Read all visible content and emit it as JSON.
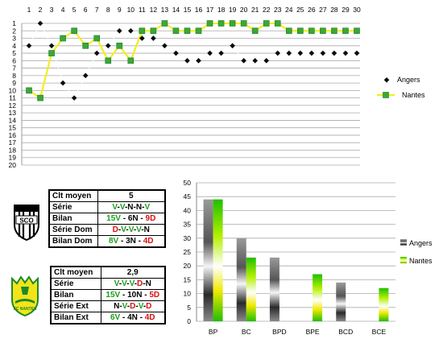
{
  "chart_data": [
    {
      "type": "line",
      "x": [
        1,
        2,
        3,
        4,
        5,
        6,
        7,
        8,
        9,
        10,
        11,
        12,
        13,
        14,
        15,
        16,
        17,
        18,
        19,
        20,
        21,
        22,
        23,
        24,
        25,
        26,
        27,
        28,
        29,
        30
      ],
      "ylim": [
        20,
        1
      ],
      "y_ticks": [
        1,
        2,
        3,
        4,
        5,
        6,
        7,
        8,
        9,
        10,
        11,
        12,
        13,
        14,
        15,
        16,
        17,
        18,
        19,
        20
      ],
      "grid": true,
      "legend_position": "right",
      "series": [
        {
          "name": "Angers",
          "marker": "diamond",
          "color": "#0a0a0a",
          "values": [
            4,
            1,
            4,
            9,
            11,
            8,
            5,
            4,
            2,
            2,
            3,
            3,
            4,
            5,
            6,
            6,
            5,
            5,
            4,
            6,
            6,
            6,
            5,
            5,
            5,
            5,
            5,
            5,
            5,
            5
          ]
        },
        {
          "name": "Nantes",
          "marker": "square",
          "color": "#3aa835",
          "line_color": "#f2ee20",
          "values": [
            10,
            11,
            5,
            3,
            2,
            4,
            3,
            6,
            4,
            6,
            2,
            2,
            1,
            2,
            2,
            2,
            1,
            1,
            1,
            1,
            2,
            1,
            1,
            2,
            2,
            2,
            2,
            2,
            2,
            2
          ]
        }
      ]
    },
    {
      "type": "bar",
      "categories": [
        "BP",
        "BC",
        "BPD",
        "BPE",
        "BCD",
        "BCE"
      ],
      "ylim": [
        0,
        50
      ],
      "y_ticks": [
        0,
        5,
        10,
        15,
        20,
        25,
        30,
        35,
        40,
        45,
        50
      ],
      "grid": true,
      "legend_position": "right",
      "series": [
        {
          "name": "Angers",
          "values": [
            44,
            30,
            23,
            0,
            14,
            0
          ],
          "color": "#7a7a7a"
        },
        {
          "name": "Nantes",
          "values": [
            44,
            23,
            0,
            17,
            0,
            12
          ],
          "color": "#33cc00"
        }
      ]
    }
  ],
  "angers": {
    "logo_text": "SCO",
    "rows": [
      {
        "label": "Clt moyen",
        "value": "5"
      },
      {
        "label": "Série",
        "parts": [
          {
            "t": "V",
            "c": "V"
          },
          {
            "t": "-",
            "c": "N"
          },
          {
            "t": "V",
            "c": "V"
          },
          {
            "t": "-",
            "c": "N"
          },
          {
            "t": "N",
            "c": "N"
          },
          {
            "t": "-",
            "c": "N"
          },
          {
            "t": "N",
            "c": "N"
          },
          {
            "t": "-",
            "c": "N"
          },
          {
            "t": "V",
            "c": "V"
          }
        ]
      },
      {
        "label": "Bilan",
        "parts": [
          {
            "t": "15V",
            "c": "V"
          },
          {
            "t": " - 6N - ",
            "c": "N"
          },
          {
            "t": "9D",
            "c": "D"
          }
        ]
      },
      {
        "label": "Série Dom",
        "parts": [
          {
            "t": "D",
            "c": "D"
          },
          {
            "t": "-",
            "c": "N"
          },
          {
            "t": "V",
            "c": "V"
          },
          {
            "t": "-",
            "c": "N"
          },
          {
            "t": "V",
            "c": "V"
          },
          {
            "t": "-",
            "c": "N"
          },
          {
            "t": "V",
            "c": "V"
          },
          {
            "t": "-",
            "c": "N"
          },
          {
            "t": "N",
            "c": "N"
          }
        ]
      },
      {
        "label": "Bilan Dom",
        "parts": [
          {
            "t": "8V",
            "c": "V"
          },
          {
            "t": " - 3N - ",
            "c": "N"
          },
          {
            "t": "4D",
            "c": "D"
          }
        ]
      }
    ]
  },
  "nantes": {
    "logo_text": "FC NANTES",
    "rows": [
      {
        "label": "Clt moyen",
        "value": "2,9"
      },
      {
        "label": "Série",
        "parts": [
          {
            "t": "V",
            "c": "V"
          },
          {
            "t": "-",
            "c": "N"
          },
          {
            "t": "V",
            "c": "V"
          },
          {
            "t": "-",
            "c": "N"
          },
          {
            "t": "V",
            "c": "V"
          },
          {
            "t": "-",
            "c": "N"
          },
          {
            "t": "D",
            "c": "D"
          },
          {
            "t": "-",
            "c": "N"
          },
          {
            "t": "N",
            "c": "N"
          }
        ]
      },
      {
        "label": "Bilan",
        "parts": [
          {
            "t": "15V",
            "c": "V"
          },
          {
            "t": " - 10N - ",
            "c": "N"
          },
          {
            "t": "5D",
            "c": "D"
          }
        ]
      },
      {
        "label": "Série Ext",
        "parts": [
          {
            "t": "N",
            "c": "N"
          },
          {
            "t": "-",
            "c": "N"
          },
          {
            "t": "V",
            "c": "V"
          },
          {
            "t": "-",
            "c": "N"
          },
          {
            "t": "D",
            "c": "D"
          },
          {
            "t": "-",
            "c": "N"
          },
          {
            "t": "V",
            "c": "V"
          },
          {
            "t": "-",
            "c": "N"
          },
          {
            "t": "D",
            "c": "D"
          }
        ]
      },
      {
        "label": "Bilan Ext",
        "parts": [
          {
            "t": "6V",
            "c": "V"
          },
          {
            "t": " - 4N - ",
            "c": "N"
          },
          {
            "t": "4D",
            "c": "D"
          }
        ]
      }
    ]
  }
}
